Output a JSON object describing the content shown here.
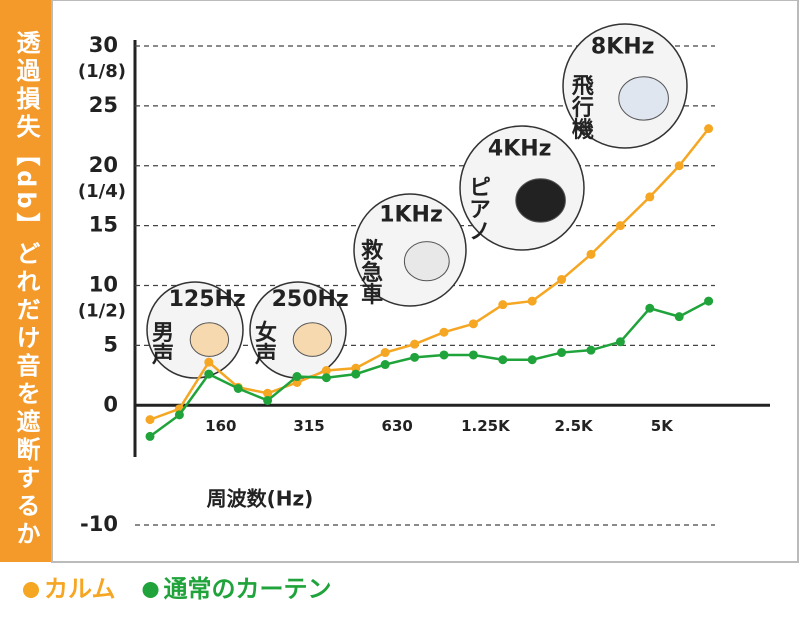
{
  "chart_data": {
    "type": "line",
    "y_axis_title": "透過損失【db】どれだけ音を遮断するか",
    "x_axis_title": "周波数(Hz)",
    "categories": [
      null,
      null,
      "160",
      null,
      null,
      "315",
      null,
      null,
      "630",
      null,
      null,
      "1.25K",
      null,
      null,
      "2.5K",
      null,
      null,
      "5K",
      null,
      null
    ],
    "series": [
      {
        "name": "カルム",
        "color": "#f5a623",
        "values": [
          -1.2,
          -0.3,
          3.6,
          1.5,
          1.0,
          1.9,
          2.9,
          3.1,
          4.4,
          5.1,
          6.1,
          6.8,
          8.4,
          8.7,
          10.5,
          12.6,
          15.0,
          17.4,
          20.0,
          23.1
        ]
      },
      {
        "name": "通常のカーテン",
        "color": "#1fa33a",
        "values": [
          -2.6,
          -0.8,
          2.6,
          1.4,
          0.4,
          2.4,
          2.3,
          2.6,
          3.4,
          4.0,
          4.2,
          4.2,
          3.8,
          3.8,
          4.4,
          4.6,
          5.3,
          8.1,
          7.4,
          8.7
        ]
      }
    ],
    "ylim": [
      -10,
      30
    ],
    "yticks": [
      -10,
      0,
      5,
      10,
      15,
      20,
      25,
      30
    ],
    "ytick_sublabels": [
      {
        "value": 10,
        "label": "(1/2)"
      },
      {
        "value": 20,
        "label": "(1/4)"
      },
      {
        "value": 30,
        "label": "(1/8)"
      }
    ],
    "grid": true,
    "annotations": [
      {
        "frequency": "125Hz",
        "label": "男声"
      },
      {
        "frequency": "250Hz",
        "label": "女声"
      },
      {
        "frequency": "1KHz",
        "label": "救急車"
      },
      {
        "frequency": "4KHz",
        "label": "ピアノ"
      },
      {
        "frequency": "8KHz",
        "label": "飛行機"
      }
    ]
  }
}
